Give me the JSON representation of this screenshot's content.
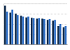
{
  "chart_data": {
    "type": "bar",
    "categories": [
      null,
      null,
      null,
      null,
      null,
      null,
      null,
      null,
      null,
      null,
      null,
      null
    ],
    "series": [
      {
        "color": "#0f2a4a",
        "values": [
          95,
          78,
          75,
          70,
          66,
          65,
          63,
          63,
          60,
          58,
          45,
          42
        ]
      },
      {
        "color": "#2b6cc4",
        "values": [
          80,
          85,
          72,
          68,
          68,
          64,
          64,
          62,
          62,
          60,
          50,
          45
        ]
      }
    ],
    "ylim": [
      0,
      100
    ],
    "yticks": [
      0,
      25,
      50,
      75,
      100
    ],
    "grid": true,
    "tick_labels": false
  }
}
